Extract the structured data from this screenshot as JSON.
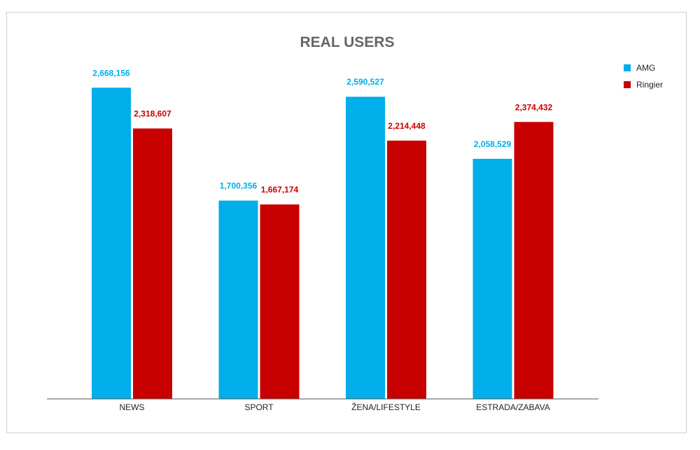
{
  "chart_data": {
    "type": "bar",
    "title": "REAL USERS",
    "categories": [
      "NEWS",
      "SPORT",
      "ŽENA/LIFESTYLE",
      "ESTRADA/ZABAVA"
    ],
    "series": [
      {
        "name": "AMG",
        "color": "#00aee9",
        "values": [
          2668156,
          1700356,
          2590527,
          2058529
        ],
        "labels": [
          "2,668,156",
          "1,700,356",
          "2,590,527",
          "2,058,529"
        ]
      },
      {
        "name": "Ringier",
        "color": "#c80000",
        "values": [
          2318607,
          1667174,
          2214448,
          2374432
        ],
        "labels": [
          "2,318,607",
          "1,667,174",
          "2,214,448",
          "2,374,432"
        ]
      }
    ],
    "ylim": [
      0,
      2700000
    ],
    "grid": false,
    "legend_position": "top-right"
  }
}
